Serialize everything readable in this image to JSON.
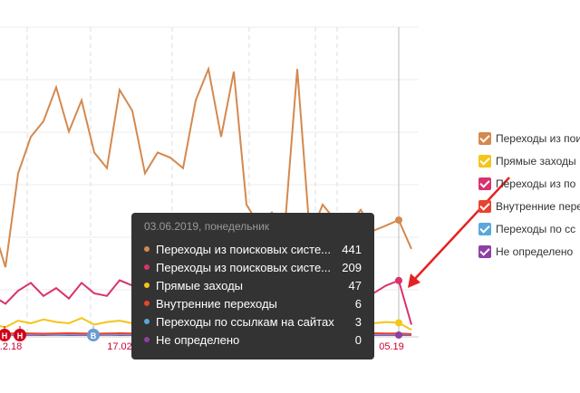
{
  "chart": {
    "type": "line",
    "x_labels": [
      ".2.18",
      "17.02",
      "05.19"
    ],
    "event_markers": [
      "Н",
      "Н",
      "В"
    ],
    "series": [
      {
        "color": "#d4894f",
        "values": [
          420,
          260,
          620,
          760,
          820,
          950,
          780,
          900,
          700,
          640,
          940,
          860,
          620,
          700,
          680,
          640,
          900,
          1020,
          760,
          1010,
          500,
          420,
          470,
          400,
          1020,
          380,
          500,
          440,
          420,
          480,
          400,
          420,
          441,
          330
        ]
      },
      {
        "color": "#d9326f",
        "values": [
          150,
          120,
          170,
          200,
          150,
          180,
          140,
          200,
          160,
          150,
          210,
          190,
          170,
          180,
          270,
          190,
          180,
          200,
          170,
          190,
          160,
          180,
          170,
          200,
          150,
          180,
          160,
          190,
          170,
          180,
          160,
          190,
          209,
          40
        ]
      },
      {
        "color": "#f5c518",
        "values": [
          40,
          30,
          55,
          45,
          60,
          50,
          45,
          65,
          40,
          50,
          55,
          45,
          60,
          50,
          55,
          45,
          60,
          50,
          45,
          55,
          50,
          40,
          55,
          45,
          50,
          60,
          45,
          50,
          40,
          55,
          45,
          50,
          47,
          20
        ]
      },
      {
        "color": "#e8432e",
        "values": [
          6,
          5,
          7,
          6,
          5,
          6,
          7,
          6,
          5,
          6,
          7,
          6,
          5,
          6,
          7,
          6,
          5,
          6,
          7,
          6,
          5,
          6,
          7,
          6,
          5,
          6,
          7,
          6,
          5,
          6,
          7,
          6,
          6,
          4
        ]
      },
      {
        "color": "#5aa7dc",
        "values": [
          3,
          2,
          3,
          4,
          3,
          2,
          3,
          4,
          3,
          2,
          3,
          4,
          3,
          2,
          3,
          4,
          3,
          2,
          3,
          4,
          3,
          2,
          3,
          4,
          3,
          2,
          3,
          4,
          3,
          2,
          3,
          4,
          3,
          2
        ]
      },
      {
        "color": "#8e3fa3",
        "values": [
          0,
          1,
          0,
          1,
          0,
          1,
          0,
          1,
          0,
          1,
          0,
          1,
          0,
          1,
          0,
          1,
          0,
          1,
          0,
          1,
          0,
          1,
          0,
          1,
          0,
          1,
          0,
          1,
          0,
          1,
          0,
          1,
          0,
          0
        ]
      }
    ]
  },
  "tooltip": {
    "date": "03.06.2019, понедельник",
    "rows": [
      {
        "label": "Переходы из поисковых систе...",
        "value": 441,
        "color": "#d4894f"
      },
      {
        "label": "Переходы из поисковых систе...",
        "value": 209,
        "color": "#d9326f"
      },
      {
        "label": "Прямые заходы",
        "value": 47,
        "color": "#f5c518"
      },
      {
        "label": "Внутренние переходы",
        "value": 6,
        "color": "#e8432e"
      },
      {
        "label": "Переходы по ссылкам на сайтах",
        "value": 3,
        "color": "#5aa7dc"
      },
      {
        "label": "Не определено",
        "value": 0,
        "color": "#8e3fa3"
      }
    ]
  },
  "legend": [
    {
      "label": "Переходы из пои",
      "color": "#d4894f"
    },
    {
      "label": "Прямые заходы",
      "color": "#f5c518"
    },
    {
      "label": "Переходы из по",
      "color": "#d9326f"
    },
    {
      "label": "Внутренние пере",
      "color": "#e8432e"
    },
    {
      "label": "Переходы по сс",
      "color": "#5aa7dc"
    },
    {
      "label": "Не определено",
      "color": "#8e3fa3"
    }
  ]
}
